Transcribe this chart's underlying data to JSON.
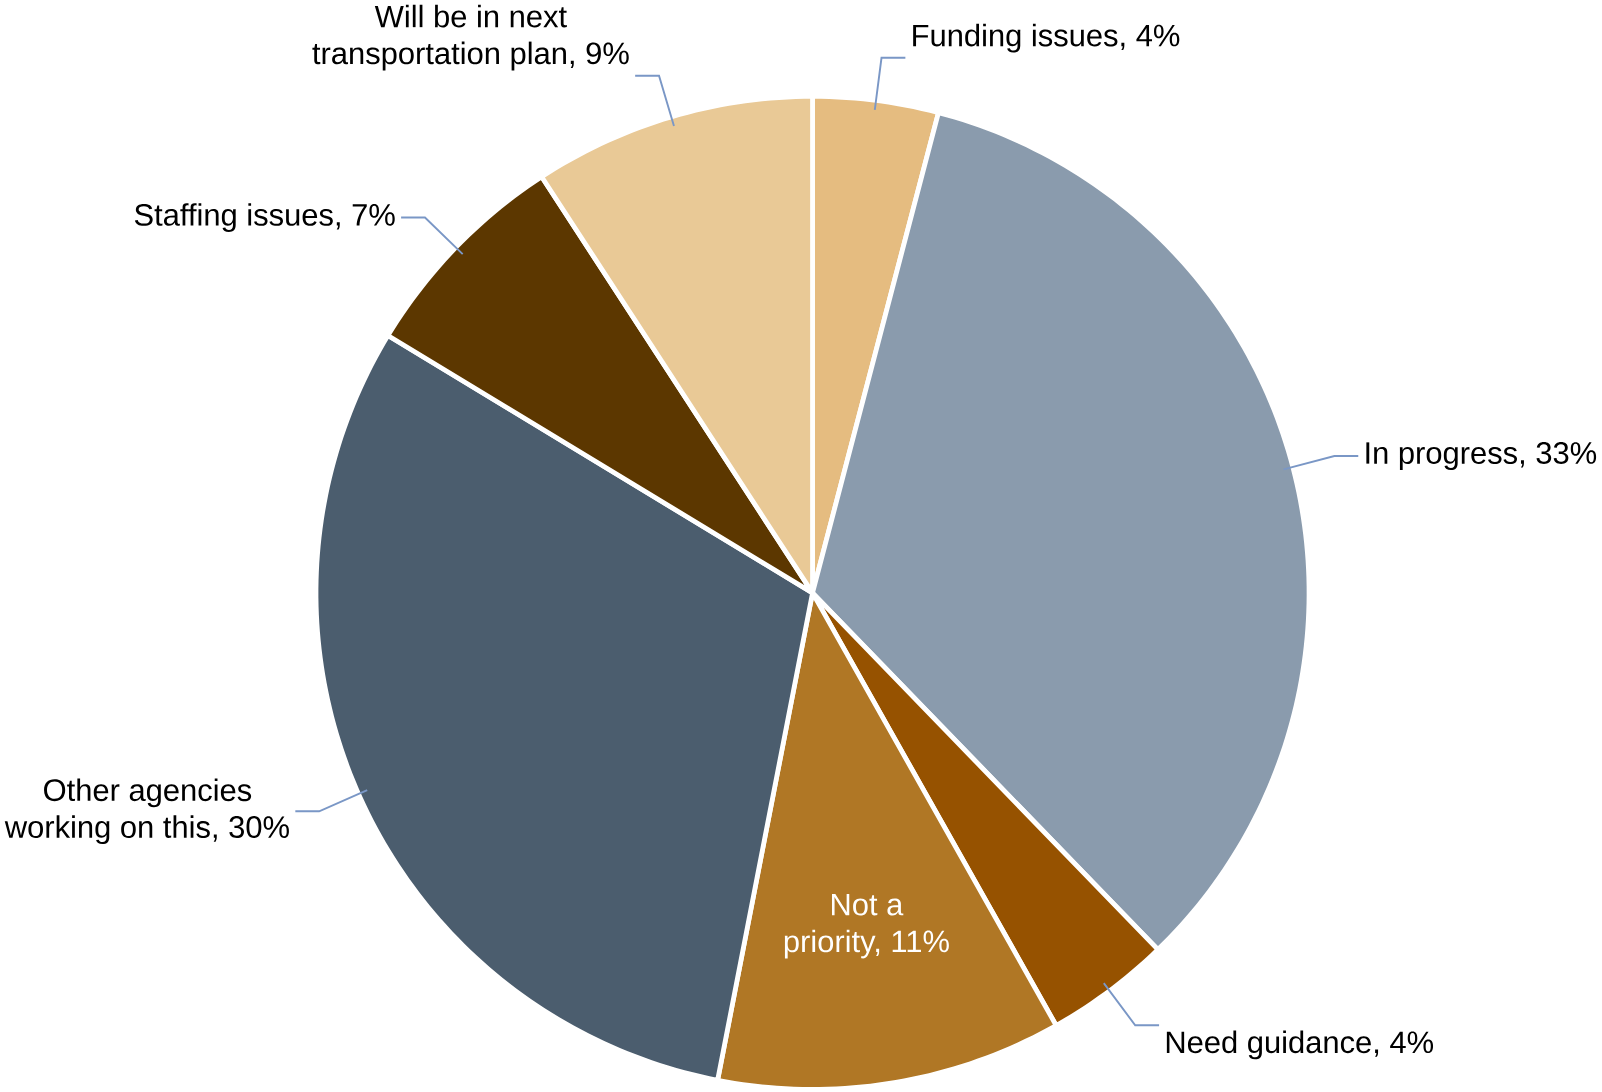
{
  "chart_data": {
    "type": "pie",
    "categories": [
      "Funding issues, 4%",
      "In progress, 33%",
      "Need guidance, 4%",
      "Not a priority, 11%",
      "Other agencies working on this, 30%",
      "Staffing issues, 7%",
      "Will be in next transportation plan, 9%"
    ],
    "values": [
      4,
      33,
      4,
      11,
      30,
      7,
      9
    ],
    "colors": [
      "#e5bc80",
      "#8a9bad",
      "#965200",
      "#b07725",
      "#4b5d6e",
      "#5c3700",
      "#e9c996"
    ]
  }
}
